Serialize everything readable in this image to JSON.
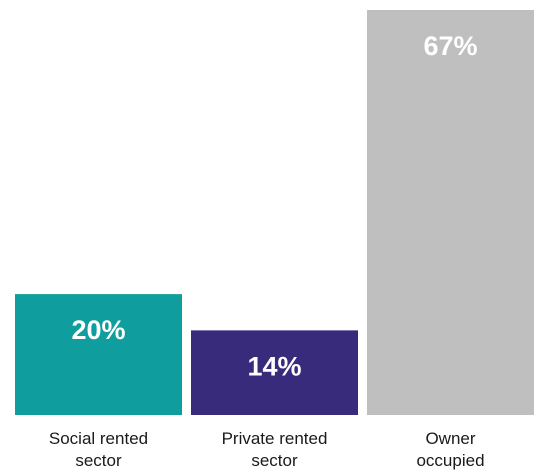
{
  "chart_data": {
    "type": "bar",
    "categories": [
      [
        "Social rented",
        "sector"
      ],
      [
        "Private rented",
        "sector"
      ],
      [
        "Owner",
        "occupied"
      ]
    ],
    "values": [
      20,
      14,
      67
    ],
    "value_labels": [
      "20%",
      "14%",
      "67%"
    ],
    "colors": [
      "#0f9e9d",
      "#392b7c",
      "#bfbfbf"
    ],
    "ylim": [
      0,
      67
    ],
    "grid": false,
    "legend": "none",
    "title": "",
    "xlabel": "",
    "ylabel": ""
  }
}
